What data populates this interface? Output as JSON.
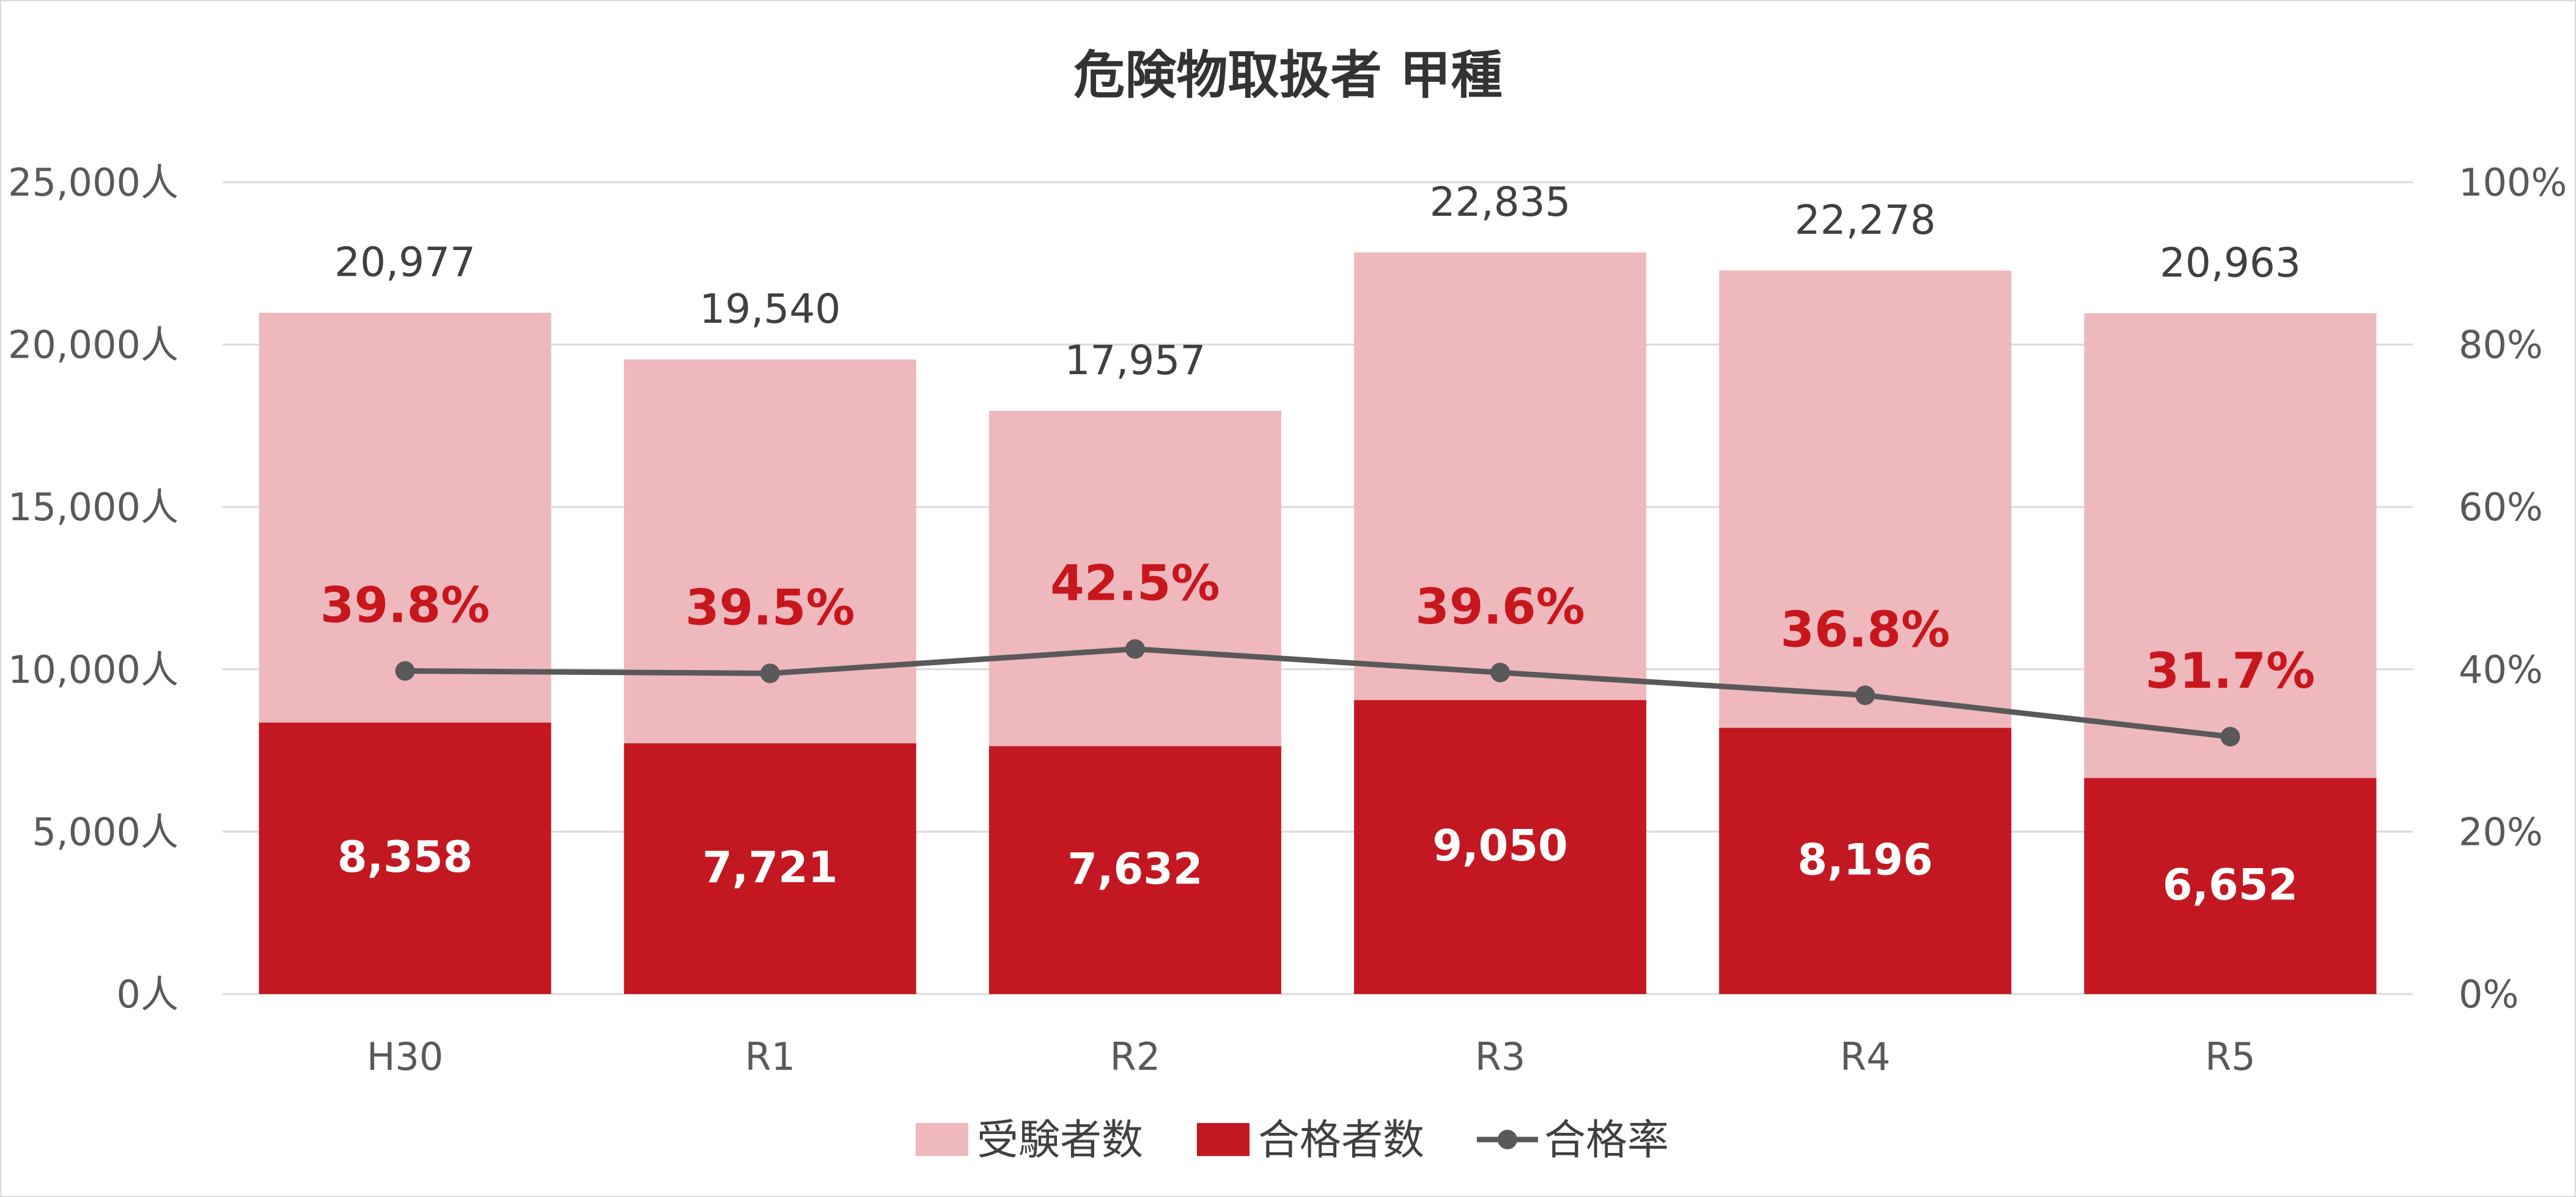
{
  "colors": {
    "examinees": "#eeb8bc",
    "passers": "#c31821",
    "rate_line": "#595959",
    "rate_label": "#c8161d",
    "grid": "#d9d9d9"
  },
  "chart_data": {
    "type": "bar",
    "title": "危険物取扱者 甲種",
    "categories": [
      "H30",
      "R1",
      "R2",
      "R3",
      "R4",
      "R5"
    ],
    "series": [
      {
        "name": "受験者数",
        "kind": "bar",
        "values": [
          20977,
          19540,
          17957,
          22835,
          22278,
          20963
        ],
        "labels": [
          "20,977",
          "19,540",
          "17,957",
          "22,835",
          "22,278",
          "20,963"
        ]
      },
      {
        "name": "合格者数",
        "kind": "bar",
        "values": [
          8358,
          7721,
          7632,
          9050,
          8196,
          6652
        ],
        "labels": [
          "8,358",
          "7,721",
          "7,632",
          "9,050",
          "8,196",
          "6,652"
        ]
      },
      {
        "name": "合格率",
        "kind": "line",
        "axis": "right",
        "values": [
          39.8,
          39.5,
          42.5,
          39.6,
          36.8,
          31.7
        ],
        "labels": [
          "39.8%",
          "39.5%",
          "42.5%",
          "39.6%",
          "36.8%",
          "31.7%"
        ]
      }
    ],
    "y_left": {
      "ylim": [
        0,
        25000
      ],
      "ticks": [
        "0人",
        "5,000人",
        "10,000人",
        "15,000人",
        "20,000人",
        "25,000人"
      ]
    },
    "y_right": {
      "ylim": [
        0,
        100
      ],
      "ticks": [
        "0%",
        "20%",
        "40%",
        "60%",
        "80%",
        "100%"
      ]
    },
    "grid": true,
    "legend_position": "bottom"
  }
}
